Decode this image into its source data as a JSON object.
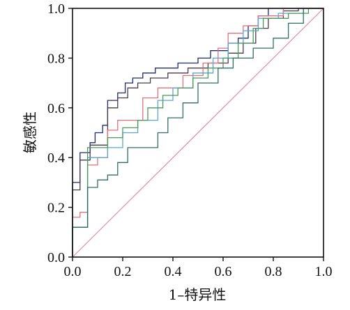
{
  "chart_data": {
    "type": "line",
    "xlabel": "1–特异性",
    "ylabel": "敏感性",
    "xlim": [
      0,
      1
    ],
    "ylim": [
      0,
      1
    ],
    "x_ticks": [
      "0.0",
      "0.2",
      "0.4",
      "0.6",
      "0.8",
      "1.0"
    ],
    "y_ticks": [
      "0.0",
      "0.2",
      "0.4",
      "0.6",
      "0.8",
      "1.0"
    ],
    "grid": false,
    "legend": "none",
    "reference_line": {
      "color": "#e48aac",
      "points": [
        [
          0,
          0
        ],
        [
          1,
          1
        ]
      ]
    },
    "series": [
      {
        "color": "#1f2a6e",
        "points": [
          [
            0,
            0
          ],
          [
            0,
            0.3
          ],
          [
            0.03,
            0.3
          ],
          [
            0.03,
            0.42
          ],
          [
            0.07,
            0.42
          ],
          [
            0.07,
            0.46
          ],
          [
            0.09,
            0.46
          ],
          [
            0.09,
            0.5
          ],
          [
            0.12,
            0.5
          ],
          [
            0.12,
            0.53
          ],
          [
            0.14,
            0.53
          ],
          [
            0.14,
            0.63
          ],
          [
            0.18,
            0.63
          ],
          [
            0.18,
            0.66
          ],
          [
            0.21,
            0.66
          ],
          [
            0.21,
            0.7
          ],
          [
            0.24,
            0.7
          ],
          [
            0.24,
            0.72
          ],
          [
            0.28,
            0.72
          ],
          [
            0.28,
            0.74
          ],
          [
            0.33,
            0.74
          ],
          [
            0.33,
            0.76
          ],
          [
            0.42,
            0.76
          ],
          [
            0.42,
            0.78
          ],
          [
            0.5,
            0.78
          ],
          [
            0.5,
            0.8
          ],
          [
            0.55,
            0.8
          ],
          [
            0.55,
            0.83
          ],
          [
            0.62,
            0.83
          ],
          [
            0.62,
            0.86
          ],
          [
            0.66,
            0.86
          ],
          [
            0.66,
            0.88
          ],
          [
            0.7,
            0.88
          ],
          [
            0.7,
            0.93
          ],
          [
            0.74,
            0.93
          ],
          [
            0.74,
            0.97
          ],
          [
            0.78,
            0.97
          ],
          [
            0.78,
            1.0
          ],
          [
            1.0,
            1.0
          ]
        ]
      },
      {
        "color": "#4a3a48",
        "points": [
          [
            0,
            0
          ],
          [
            0,
            0.27
          ],
          [
            0.03,
            0.27
          ],
          [
            0.03,
            0.39
          ],
          [
            0.07,
            0.39
          ],
          [
            0.07,
            0.45
          ],
          [
            0.14,
            0.45
          ],
          [
            0.14,
            0.6
          ],
          [
            0.18,
            0.6
          ],
          [
            0.18,
            0.64
          ],
          [
            0.22,
            0.64
          ],
          [
            0.22,
            0.68
          ],
          [
            0.26,
            0.68
          ],
          [
            0.26,
            0.7
          ],
          [
            0.31,
            0.7
          ],
          [
            0.31,
            0.72
          ],
          [
            0.38,
            0.72
          ],
          [
            0.38,
            0.74
          ],
          [
            0.46,
            0.74
          ],
          [
            0.46,
            0.76
          ],
          [
            0.54,
            0.76
          ],
          [
            0.54,
            0.78
          ],
          [
            0.62,
            0.78
          ],
          [
            0.62,
            0.82
          ],
          [
            0.68,
            0.82
          ],
          [
            0.68,
            0.86
          ],
          [
            0.73,
            0.86
          ],
          [
            0.73,
            0.92
          ],
          [
            0.78,
            0.92
          ],
          [
            0.78,
            0.96
          ],
          [
            0.84,
            0.96
          ],
          [
            0.84,
            0.99
          ],
          [
            0.9,
            0.99
          ],
          [
            0.9,
            1.0
          ],
          [
            1.0,
            1.0
          ]
        ]
      },
      {
        "color": "#e0727a",
        "points": [
          [
            0,
            0
          ],
          [
            0,
            0.16
          ],
          [
            0.03,
            0.16
          ],
          [
            0.03,
            0.18
          ],
          [
            0.06,
            0.18
          ],
          [
            0.06,
            0.37
          ],
          [
            0.1,
            0.37
          ],
          [
            0.1,
            0.4
          ],
          [
            0.14,
            0.4
          ],
          [
            0.14,
            0.51
          ],
          [
            0.18,
            0.51
          ],
          [
            0.18,
            0.55
          ],
          [
            0.28,
            0.55
          ],
          [
            0.28,
            0.64
          ],
          [
            0.34,
            0.64
          ],
          [
            0.34,
            0.68
          ],
          [
            0.44,
            0.68
          ],
          [
            0.44,
            0.73
          ],
          [
            0.52,
            0.73
          ],
          [
            0.52,
            0.78
          ],
          [
            0.58,
            0.78
          ],
          [
            0.58,
            0.84
          ],
          [
            0.62,
            0.84
          ],
          [
            0.62,
            0.9
          ],
          [
            0.68,
            0.9
          ],
          [
            0.68,
            0.93
          ],
          [
            0.74,
            0.93
          ],
          [
            0.74,
            0.97
          ],
          [
            0.84,
            0.97
          ],
          [
            0.84,
            1.0
          ],
          [
            1.0,
            1.0
          ]
        ]
      },
      {
        "color": "#5aa6d0",
        "points": [
          [
            0,
            0
          ],
          [
            0,
            0.12
          ],
          [
            0.06,
            0.12
          ],
          [
            0.06,
            0.4
          ],
          [
            0.14,
            0.4
          ],
          [
            0.14,
            0.44
          ],
          [
            0.2,
            0.44
          ],
          [
            0.2,
            0.5
          ],
          [
            0.26,
            0.5
          ],
          [
            0.26,
            0.55
          ],
          [
            0.34,
            0.55
          ],
          [
            0.34,
            0.63
          ],
          [
            0.4,
            0.63
          ],
          [
            0.4,
            0.68
          ],
          [
            0.48,
            0.68
          ],
          [
            0.48,
            0.74
          ],
          [
            0.56,
            0.74
          ],
          [
            0.56,
            0.8
          ],
          [
            0.62,
            0.8
          ],
          [
            0.62,
            0.86
          ],
          [
            0.68,
            0.86
          ],
          [
            0.68,
            0.91
          ],
          [
            0.74,
            0.91
          ],
          [
            0.74,
            0.96
          ],
          [
            0.82,
            0.96
          ],
          [
            0.82,
            0.98
          ],
          [
            0.92,
            0.98
          ],
          [
            0.92,
            1.0
          ],
          [
            1.0,
            1.0
          ]
        ]
      },
      {
        "color": "#4a9a58",
        "points": [
          [
            0,
            0
          ],
          [
            0,
            0.12
          ],
          [
            0.06,
            0.12
          ],
          [
            0.06,
            0.44
          ],
          [
            0.14,
            0.44
          ],
          [
            0.14,
            0.48
          ],
          [
            0.2,
            0.48
          ],
          [
            0.2,
            0.52
          ],
          [
            0.26,
            0.52
          ],
          [
            0.26,
            0.55
          ],
          [
            0.3,
            0.55
          ],
          [
            0.3,
            0.6
          ],
          [
            0.36,
            0.6
          ],
          [
            0.36,
            0.65
          ],
          [
            0.42,
            0.65
          ],
          [
            0.42,
            0.68
          ],
          [
            0.48,
            0.68
          ],
          [
            0.48,
            0.72
          ],
          [
            0.54,
            0.72
          ],
          [
            0.54,
            0.76
          ],
          [
            0.6,
            0.76
          ],
          [
            0.6,
            0.8
          ],
          [
            0.66,
            0.8
          ],
          [
            0.66,
            0.86
          ],
          [
            0.72,
            0.86
          ],
          [
            0.72,
            0.92
          ],
          [
            0.76,
            0.92
          ],
          [
            0.76,
            0.96
          ],
          [
            0.86,
            0.96
          ],
          [
            0.86,
            0.98
          ],
          [
            0.94,
            0.98
          ],
          [
            0.94,
            1.0
          ],
          [
            1.0,
            1.0
          ]
        ]
      },
      {
        "color": "#2f6e62",
        "points": [
          [
            0,
            0
          ],
          [
            0,
            0.12
          ],
          [
            0.06,
            0.12
          ],
          [
            0.06,
            0.28
          ],
          [
            0.1,
            0.28
          ],
          [
            0.1,
            0.31
          ],
          [
            0.14,
            0.31
          ],
          [
            0.14,
            0.33
          ],
          [
            0.18,
            0.33
          ],
          [
            0.18,
            0.38
          ],
          [
            0.22,
            0.38
          ],
          [
            0.22,
            0.44
          ],
          [
            0.34,
            0.44
          ],
          [
            0.34,
            0.5
          ],
          [
            0.38,
            0.5
          ],
          [
            0.38,
            0.56
          ],
          [
            0.44,
            0.56
          ],
          [
            0.44,
            0.62
          ],
          [
            0.5,
            0.62
          ],
          [
            0.5,
            0.7
          ],
          [
            0.58,
            0.7
          ],
          [
            0.58,
            0.76
          ],
          [
            0.64,
            0.76
          ],
          [
            0.64,
            0.8
          ],
          [
            0.72,
            0.8
          ],
          [
            0.72,
            0.84
          ],
          [
            0.8,
            0.84
          ],
          [
            0.8,
            0.88
          ],
          [
            0.86,
            0.88
          ],
          [
            0.86,
            0.94
          ],
          [
            0.92,
            0.94
          ],
          [
            0.92,
            1.0
          ],
          [
            1.0,
            1.0
          ]
        ]
      }
    ]
  }
}
